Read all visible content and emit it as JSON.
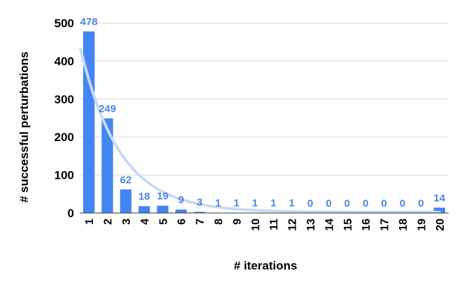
{
  "chart_data": {
    "type": "bar",
    "xlabel": "# iterations",
    "ylabel": "# successful perturbations",
    "categories": [
      "1",
      "2",
      "3",
      "4",
      "5",
      "6",
      "7",
      "8",
      "9",
      "10",
      "11",
      "12",
      "13",
      "14",
      "15",
      "16",
      "17",
      "18",
      "19",
      "20"
    ],
    "values": [
      478,
      249,
      62,
      18,
      19,
      9,
      3,
      1,
      1,
      1,
      1,
      1,
      0,
      0,
      0,
      0,
      0,
      0,
      0,
      14
    ],
    "ylim": [
      0,
      500
    ],
    "yticks": [
      0,
      100,
      200,
      300,
      400,
      500
    ],
    "trendline": {
      "type": "exponential",
      "start_value": 430,
      "decay_per_step": 0.62,
      "end_value": 2
    },
    "grid": true,
    "data_labels": true,
    "colors": {
      "bar": "#4285f4",
      "label": "#4a86e8",
      "trend": "#c9d9f6",
      "grid": "#d9d9d9"
    }
  }
}
